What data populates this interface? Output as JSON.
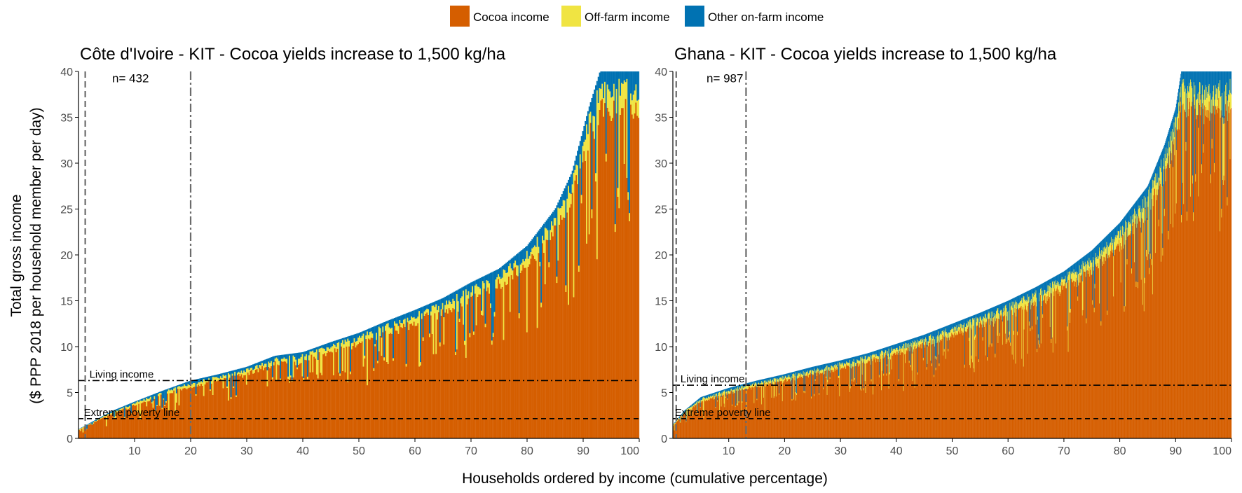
{
  "figure": {
    "xlabel": "Households ordered by income (cumulative percentage)",
    "ylabel_line1": "Total gross income",
    "ylabel_line2": "($ PPP 2018 per household member per day)"
  },
  "legend": [
    {
      "label": "Cocoa income",
      "color": "#D55E00"
    },
    {
      "label": "Off-farm income",
      "color": "#F0E442"
    },
    {
      "label": "Other on-farm income",
      "color": "#0072B2"
    }
  ],
  "chart_data": [
    {
      "type": "bar",
      "stacked": true,
      "title": "Côte d'Ivoire - KIT - Cocoa yields increase to 1,500 kg/ha",
      "n_label": "n= 432",
      "n": 432,
      "xlim": [
        0,
        100
      ],
      "ylim": [
        0,
        40
      ],
      "x_ticks": [
        10,
        20,
        30,
        40,
        50,
        60,
        70,
        80,
        90,
        100
      ],
      "x_tick_labels": [
        "10",
        "20",
        "30",
        "40",
        "50",
        "60",
        "70",
        "80",
        "90",
        "100"
      ],
      "y_ticks": [
        0,
        5,
        10,
        15,
        20,
        25,
        30,
        35,
        40
      ],
      "y_tick_labels": [
        "0",
        "5",
        "10",
        "15",
        "20",
        "25",
        "30",
        "35",
        "40"
      ],
      "series_names": [
        "Cocoa income",
        "Off-farm income",
        "Other on-farm income"
      ],
      "total_income_curve": [
        [
          0,
          1.0
        ],
        [
          3,
          2.0
        ],
        [
          6,
          3.0
        ],
        [
          10,
          4.0
        ],
        [
          15,
          5.2
        ],
        [
          20,
          6.3
        ],
        [
          25,
          7.0
        ],
        [
          30,
          7.8
        ],
        [
          35,
          9.0
        ],
        [
          40,
          9.4
        ],
        [
          45,
          10.5
        ],
        [
          50,
          11.5
        ],
        [
          55,
          12.8
        ],
        [
          60,
          14.0
        ],
        [
          65,
          15.3
        ],
        [
          70,
          17.0
        ],
        [
          75,
          18.5
        ],
        [
          80,
          21.0
        ],
        [
          85,
          25.0
        ],
        [
          88,
          29.0
        ],
        [
          91,
          36.0
        ],
        [
          93,
          40.0
        ],
        [
          100,
          40.0
        ]
      ],
      "reference_lines": [
        {
          "label": "Living income",
          "value": 6.3,
          "style": "dashdot"
        },
        {
          "label": "Extreme poverty line",
          "value": 2.15,
          "style": "dashed"
        }
      ],
      "percentile_markers": [
        {
          "x": 1.2,
          "style": "dashed"
        },
        {
          "x": 20.0,
          "style": "dashdot"
        }
      ]
    },
    {
      "type": "bar",
      "stacked": true,
      "title": "Ghana - KIT - Cocoa yields increase to 1,500 kg/ha",
      "n_label": "n= 987",
      "n": 987,
      "xlim": [
        0,
        100
      ],
      "ylim": [
        0,
        40
      ],
      "x_ticks": [
        10,
        20,
        30,
        40,
        50,
        60,
        70,
        80,
        90,
        100
      ],
      "x_tick_labels": [
        "10",
        "20",
        "30",
        "40",
        "50",
        "60",
        "70",
        "80",
        "90",
        "100"
      ],
      "y_ticks": [
        0,
        5,
        10,
        15,
        20,
        25,
        30,
        35,
        40
      ],
      "y_tick_labels": [
        "0",
        "5",
        "10",
        "15",
        "20",
        "25",
        "30",
        "35",
        "40"
      ],
      "series_names": [
        "Cocoa income",
        "Off-farm income",
        "Other on-farm income"
      ],
      "total_income_curve": [
        [
          0,
          1.5
        ],
        [
          2,
          3.0
        ],
        [
          5,
          4.5
        ],
        [
          10,
          5.5
        ],
        [
          15,
          6.3
        ],
        [
          20,
          7.0
        ],
        [
          25,
          7.8
        ],
        [
          30,
          8.5
        ],
        [
          35,
          9.3
        ],
        [
          40,
          10.3
        ],
        [
          45,
          11.3
        ],
        [
          50,
          12.5
        ],
        [
          55,
          13.7
        ],
        [
          60,
          15.0
        ],
        [
          65,
          16.5
        ],
        [
          70,
          18.2
        ],
        [
          75,
          20.5
        ],
        [
          80,
          23.5
        ],
        [
          85,
          27.5
        ],
        [
          88,
          32.0
        ],
        [
          90,
          36.0
        ],
        [
          91,
          40.0
        ],
        [
          100,
          40.0
        ]
      ],
      "reference_lines": [
        {
          "label": "Living income",
          "value": 5.8,
          "style": "dashdot"
        },
        {
          "label": "Extreme poverty line",
          "value": 2.15,
          "style": "dashed"
        }
      ],
      "percentile_markers": [
        {
          "x": 0.6,
          "style": "dashed"
        },
        {
          "x": 13.1,
          "style": "dashdot"
        }
      ]
    }
  ]
}
